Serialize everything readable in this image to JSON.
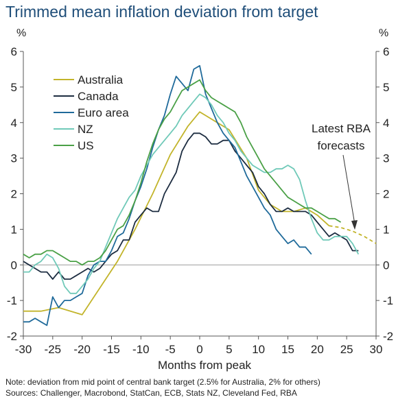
{
  "title": "Trimmed mean inflation deviation from target",
  "note": "Note: deviation from mid point of central bank target (2.5% for Australia, 2% for others)",
  "sources": "Sources: Challenger, Macrobond, StatCan, ECB, Stats NZ, Cleveland Fed, RBA",
  "chart_data": {
    "type": "line",
    "title": "Trimmed mean inflation deviation from target",
    "xlabel": "Months from peak",
    "ylabel": "%",
    "y2label": "%",
    "xlim": [
      -30,
      30
    ],
    "ylim": [
      -2,
      6
    ],
    "xticks": [
      -30,
      -25,
      -20,
      -15,
      -10,
      -5,
      0,
      5,
      10,
      15,
      20,
      25,
      30
    ],
    "yticks": [
      -2,
      -1,
      0,
      1,
      2,
      3,
      4,
      5,
      6
    ],
    "legend_position": "top-left",
    "annotation": "Latest RBA forecasts",
    "series": [
      {
        "name": "Australia",
        "color": "#c2b42a",
        "x": [
          -30,
          -27,
          -24,
          -20,
          -14,
          -11,
          -8,
          -5,
          -2,
          0,
          1,
          3,
          5,
          8,
          10,
          12,
          14,
          16,
          18,
          20,
          22
        ],
        "y": [
          -1.3,
          -1.3,
          -1.2,
          -1.4,
          0.1,
          1.0,
          2.0,
          3.1,
          3.9,
          4.3,
          4.2,
          4.0,
          3.8,
          3.0,
          2.1,
          1.7,
          1.5,
          1.5,
          1.6,
          1.4,
          1.1
        ]
      },
      {
        "name": "Australia forecast",
        "color": "#c2b42a",
        "dashed": true,
        "x": [
          22,
          24,
          26,
          28,
          30
        ],
        "y": [
          1.1,
          1.05,
          0.95,
          0.8,
          0.6
        ]
      },
      {
        "name": "Canada",
        "color": "#1c2c40",
        "x": [
          -30,
          -29,
          -28,
          -27,
          -26,
          -25,
          -24,
          -23,
          -22,
          -21,
          -20,
          -19,
          -18,
          -17,
          -16,
          -15,
          -14,
          -13,
          -12,
          -11,
          -10,
          -9,
          -8,
          -7,
          -6,
          -5,
          -4,
          -3,
          -2,
          -1,
          0,
          1,
          2,
          3,
          4,
          5,
          6,
          7,
          8,
          9,
          10,
          11,
          12,
          13,
          14,
          15,
          16,
          17,
          18,
          19,
          20,
          21,
          22,
          23,
          24,
          25,
          26,
          27
        ],
        "y": [
          0.1,
          0.0,
          -0.1,
          -0.2,
          -0.2,
          -0.4,
          -0.2,
          -0.4,
          -0.4,
          -0.3,
          -0.2,
          -0.1,
          -0.2,
          -0.1,
          0.1,
          0.3,
          0.4,
          0.7,
          0.7,
          1.2,
          1.4,
          1.6,
          1.5,
          1.5,
          2.0,
          2.3,
          2.6,
          3.2,
          3.5,
          3.7,
          3.7,
          3.6,
          3.4,
          3.4,
          3.5,
          3.5,
          3.2,
          3.0,
          2.8,
          2.6,
          2.2,
          2.0,
          1.7,
          1.5,
          1.5,
          1.6,
          1.5,
          1.5,
          1.5,
          1.4,
          1.2,
          1.0,
          0.8,
          0.9,
          0.8,
          0.7,
          0.4,
          0.4
        ]
      },
      {
        "name": "Euro area",
        "color": "#1f6a9a",
        "x": [
          -30,
          -29,
          -28,
          -27,
          -26,
          -25,
          -24,
          -23,
          -22,
          -21,
          -20,
          -19,
          -18,
          -17,
          -16,
          -15,
          -14,
          -13,
          -12,
          -11,
          -10,
          -9,
          -8,
          -7,
          -6,
          -5,
          -4,
          -3,
          -2,
          -1,
          0,
          1,
          2,
          3,
          4,
          5,
          6,
          7,
          8,
          9,
          10,
          11,
          12,
          13,
          14,
          15,
          16,
          17,
          18,
          19
        ],
        "y": [
          -1.6,
          -1.6,
          -1.5,
          -1.6,
          -1.7,
          -0.9,
          -1.2,
          -1.0,
          -1.0,
          -0.9,
          -0.8,
          -0.3,
          0.0,
          0.1,
          0.1,
          0.4,
          0.8,
          0.9,
          1.3,
          1.8,
          2.2,
          2.7,
          3.3,
          3.8,
          4.2,
          4.8,
          5.3,
          5.1,
          4.9,
          5.5,
          5.6,
          4.8,
          4.4,
          4.0,
          3.7,
          3.5,
          3.3,
          2.9,
          2.5,
          2.2,
          1.9,
          1.6,
          1.4,
          1.0,
          0.8,
          0.6,
          0.7,
          0.5,
          0.5,
          0.3
        ]
      },
      {
        "name": "NZ",
        "color": "#6fc9b8",
        "x": [
          -30,
          -29,
          -28,
          -27,
          -26,
          -25,
          -24,
          -23,
          -22,
          -21,
          -20,
          -19,
          -18,
          -17,
          -16,
          -15,
          -14,
          -13,
          -12,
          -11,
          -10,
          -9,
          -8,
          -7,
          -6,
          -5,
          -4,
          -3,
          -2,
          -1,
          0,
          1,
          2,
          3,
          4,
          5,
          6,
          7,
          8,
          9,
          10,
          11,
          12,
          13,
          14,
          15,
          16,
          17,
          18,
          19,
          20,
          21,
          22,
          23,
          24,
          25,
          26,
          27
        ],
        "y": [
          -0.2,
          -0.2,
          0.0,
          0.1,
          0.3,
          0.2,
          -0.1,
          -0.6,
          -0.8,
          -0.8,
          -0.6,
          -0.4,
          -0.1,
          0.1,
          0.5,
          0.9,
          1.3,
          1.6,
          1.9,
          2.1,
          2.5,
          2.8,
          3.1,
          3.3,
          3.5,
          3.7,
          3.9,
          4.2,
          4.4,
          4.6,
          4.8,
          4.7,
          4.5,
          4.2,
          4.0,
          3.7,
          3.5,
          3.2,
          3.0,
          2.8,
          2.7,
          2.6,
          2.6,
          2.7,
          2.7,
          2.8,
          2.7,
          2.4,
          1.8,
          1.3,
          0.9,
          0.7,
          0.7,
          0.8,
          0.8,
          0.8,
          0.6,
          0.3
        ]
      },
      {
        "name": "US",
        "color": "#4aa046",
        "x": [
          -30,
          -29,
          -28,
          -27,
          -26,
          -25,
          -24,
          -23,
          -22,
          -21,
          -20,
          -19,
          -18,
          -17,
          -16,
          -15,
          -14,
          -13,
          -12,
          -11,
          -10,
          -9,
          -8,
          -7,
          -6,
          -5,
          -4,
          -3,
          -2,
          -1,
          0,
          1,
          2,
          3,
          4,
          5,
          6,
          7,
          8,
          9,
          10,
          11,
          12,
          13,
          14,
          15,
          16,
          17,
          18,
          19,
          20,
          21,
          22,
          23,
          24
        ],
        "y": [
          0.3,
          0.2,
          0.3,
          0.3,
          0.4,
          0.4,
          0.3,
          0.2,
          0.1,
          0.1,
          0.0,
          0.1,
          0.1,
          0.2,
          0.4,
          0.7,
          1.0,
          1.1,
          1.4,
          1.8,
          2.3,
          2.9,
          3.4,
          3.8,
          4.1,
          4.3,
          4.6,
          4.9,
          5.0,
          5.1,
          5.2,
          4.9,
          4.7,
          4.6,
          4.5,
          4.4,
          4.3,
          4.0,
          3.6,
          3.3,
          3.0,
          2.7,
          2.5,
          2.3,
          2.1,
          1.9,
          1.8,
          1.7,
          1.6,
          1.6,
          1.5,
          1.4,
          1.3,
          1.3,
          1.2
        ]
      }
    ],
    "legend": [
      "Australia",
      "Canada",
      "Euro area",
      "NZ",
      "US"
    ]
  }
}
